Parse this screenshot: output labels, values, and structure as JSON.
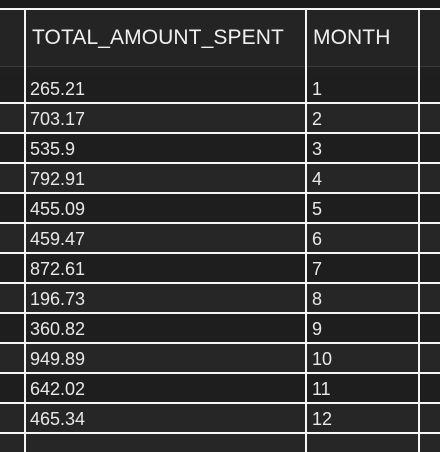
{
  "table": {
    "columns": [
      {
        "label": "TOTAL_AMOUNT_SPENT"
      },
      {
        "label": "MONTH"
      }
    ],
    "rows": [
      {
        "total_amount_spent": "265.21",
        "month": "1"
      },
      {
        "total_amount_spent": "703.17",
        "month": "2"
      },
      {
        "total_amount_spent": "535.9",
        "month": "3"
      },
      {
        "total_amount_spent": "792.91",
        "month": "4"
      },
      {
        "total_amount_spent": "455.09",
        "month": "5"
      },
      {
        "total_amount_spent": "459.47",
        "month": "6"
      },
      {
        "total_amount_spent": "872.61",
        "month": "7"
      },
      {
        "total_amount_spent": "196.73",
        "month": "8"
      },
      {
        "total_amount_spent": "360.82",
        "month": "9"
      },
      {
        "total_amount_spent": "949.89",
        "month": "10"
      },
      {
        "total_amount_spent": "642.02",
        "month": "11"
      },
      {
        "total_amount_spent": "465.34",
        "month": "12"
      }
    ]
  },
  "colors": {
    "background": "#1e1e1e",
    "header_background": "#242424",
    "row_alt": "#262626",
    "grid_line": "#f5f5f5",
    "text": "#e8e8e8"
  }
}
